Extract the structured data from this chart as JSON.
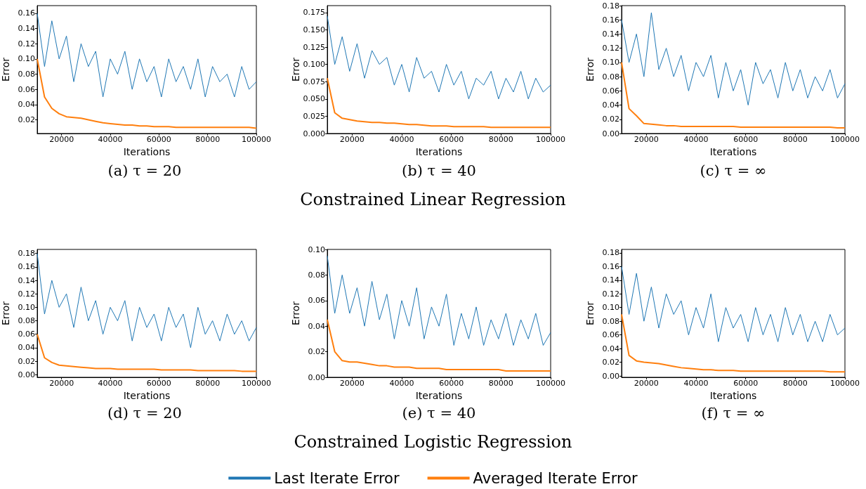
{
  "chart_data": [
    {
      "type": "line",
      "annotations": [
        "(a) τ = 20"
      ],
      "xlabel": "Iterations",
      "ylabel": "Error",
      "x": [
        10000,
        13000,
        16000,
        19000,
        22000,
        25000,
        28000,
        31000,
        34000,
        37000,
        40000,
        43000,
        46000,
        49000,
        52000,
        55000,
        58000,
        61000,
        64000,
        67000,
        70000,
        73000,
        76000,
        79000,
        82000,
        85000,
        88000,
        91000,
        94000,
        97000,
        100000
      ],
      "xlim": [
        10000,
        100000
      ],
      "xticks": [
        20000,
        40000,
        60000,
        80000,
        100000
      ],
      "ylim": [
        0.002,
        0.17
      ],
      "yticks": [
        0.02,
        0.04,
        0.06,
        0.08,
        {
          "value": 0.1,
          "label": "0.10"
        },
        0.12,
        0.14,
        0.16
      ],
      "grid": false,
      "legend": false,
      "marker": "none",
      "series": [
        {
          "color": "#1f77b4",
          "values": [
            0.16,
            0.09,
            0.15,
            0.1,
            0.13,
            0.07,
            0.12,
            0.09,
            0.11,
            0.05,
            0.1,
            0.08,
            0.11,
            0.06,
            0.1,
            0.07,
            0.09,
            0.05,
            0.1,
            0.07,
            0.09,
            0.06,
            0.1,
            0.05,
            0.09,
            0.07,
            0.08,
            0.05,
            0.09,
            0.06,
            0.07
          ]
        },
        {
          "color": "#ff7f0e",
          "values": [
            0.1,
            0.05,
            0.035,
            0.028,
            0.024,
            0.023,
            0.022,
            0.02,
            0.018,
            0.016,
            0.015,
            0.014,
            0.013,
            0.013,
            0.012,
            0.012,
            0.011,
            0.011,
            0.011,
            0.01,
            0.01,
            0.01,
            0.01,
            0.01,
            0.01,
            0.01,
            0.01,
            0.01,
            0.01,
            0.01,
            0.009
          ]
        }
      ]
    },
    {
      "type": "line",
      "title": "Constrained Linear Regression",
      "annotations": [
        "(b) τ = 40"
      ],
      "xlabel": "Iterations",
      "ylabel": "Error",
      "x": [
        10000,
        13000,
        16000,
        19000,
        22000,
        25000,
        28000,
        31000,
        34000,
        37000,
        40000,
        43000,
        46000,
        49000,
        52000,
        55000,
        58000,
        61000,
        64000,
        67000,
        70000,
        73000,
        76000,
        79000,
        82000,
        85000,
        88000,
        91000,
        94000,
        97000,
        100000
      ],
      "xlim": [
        10000,
        100000
      ],
      "xticks": [
        20000,
        40000,
        60000,
        80000,
        100000
      ],
      "ylim": [
        0,
        0.185
      ],
      "yticks": [
        {
          "value": 0,
          "label": "0.000"
        },
        {
          "value": 0.025,
          "label": "0.025"
        },
        {
          "value": 0.05,
          "label": "0.050"
        },
        {
          "value": 0.075,
          "label": "0.075"
        },
        {
          "value": 0.1,
          "label": "0.100"
        },
        {
          "value": 0.125,
          "label": "0.125"
        },
        {
          "value": 0.15,
          "label": "0.150"
        },
        {
          "value": 0.175,
          "label": "0.175"
        }
      ],
      "grid": false,
      "legend": false,
      "marker": "none",
      "series": [
        {
          "color": "#1f77b4",
          "values": [
            0.17,
            0.1,
            0.14,
            0.09,
            0.13,
            0.08,
            0.12,
            0.1,
            0.11,
            0.07,
            0.1,
            0.06,
            0.11,
            0.08,
            0.09,
            0.06,
            0.1,
            0.07,
            0.09,
            0.05,
            0.08,
            0.07,
            0.09,
            0.05,
            0.08,
            0.06,
            0.09,
            0.05,
            0.08,
            0.06,
            0.07
          ]
        },
        {
          "color": "#ff7f0e",
          "values": [
            0.08,
            0.03,
            0.022,
            0.02,
            0.018,
            0.017,
            0.016,
            0.016,
            0.015,
            0.015,
            0.014,
            0.013,
            0.013,
            0.012,
            0.011,
            0.011,
            0.011,
            0.01,
            0.01,
            0.01,
            0.01,
            0.01,
            0.009,
            0.009,
            0.009,
            0.009,
            0.009,
            0.009,
            0.009,
            0.009,
            0.009
          ]
        }
      ]
    },
    {
      "type": "line",
      "annotations": [
        "(c) τ = ∞"
      ],
      "xlabel": "Iterations",
      "ylabel": "Error",
      "x": [
        10000,
        13000,
        16000,
        19000,
        22000,
        25000,
        28000,
        31000,
        34000,
        37000,
        40000,
        43000,
        46000,
        49000,
        52000,
        55000,
        58000,
        61000,
        64000,
        67000,
        70000,
        73000,
        76000,
        79000,
        82000,
        85000,
        88000,
        91000,
        94000,
        97000,
        100000
      ],
      "xlim": [
        10000,
        100000
      ],
      "xticks": [
        20000,
        40000,
        60000,
        80000,
        100000
      ],
      "ylim": [
        0,
        0.18
      ],
      "yticks": [
        {
          "value": 0,
          "label": "0.00"
        },
        0.02,
        0.04,
        0.06,
        0.08,
        {
          "value": 0.1,
          "label": "0.10"
        },
        0.12,
        0.14,
        0.16,
        0.18
      ],
      "grid": false,
      "legend": false,
      "marker": "none",
      "series": [
        {
          "color": "#1f77b4",
          "values": [
            0.16,
            0.1,
            0.14,
            0.08,
            0.17,
            0.09,
            0.12,
            0.08,
            0.11,
            0.06,
            0.1,
            0.08,
            0.11,
            0.05,
            0.1,
            0.06,
            0.09,
            0.04,
            0.1,
            0.07,
            0.09,
            0.05,
            0.1,
            0.06,
            0.09,
            0.05,
            0.08,
            0.06,
            0.09,
            0.05,
            0.07
          ]
        },
        {
          "color": "#ff7f0e",
          "values": [
            0.1,
            0.035,
            0.025,
            0.014,
            0.013,
            0.012,
            0.011,
            0.011,
            0.01,
            0.01,
            0.01,
            0.01,
            0.01,
            0.01,
            0.01,
            0.01,
            0.009,
            0.009,
            0.009,
            0.009,
            0.009,
            0.009,
            0.009,
            0.009,
            0.009,
            0.009,
            0.009,
            0.009,
            0.009,
            0.008,
            0.008
          ]
        }
      ]
    },
    {
      "type": "line",
      "annotations": [
        "(d) τ = 20"
      ],
      "xlabel": "Iterations",
      "ylabel": "Error",
      "x": [
        10000,
        13000,
        16000,
        19000,
        22000,
        25000,
        28000,
        31000,
        34000,
        37000,
        40000,
        43000,
        46000,
        49000,
        52000,
        55000,
        58000,
        61000,
        64000,
        67000,
        70000,
        73000,
        76000,
        79000,
        82000,
        85000,
        88000,
        91000,
        94000,
        97000,
        100000
      ],
      "xlim": [
        10000,
        100000
      ],
      "xticks": [
        20000,
        40000,
        60000,
        80000,
        100000
      ],
      "ylim": [
        -0.004,
        0.186
      ],
      "yticks": [
        {
          "value": 0,
          "label": "0.00"
        },
        0.02,
        0.04,
        0.06,
        0.08,
        {
          "value": 0.1,
          "label": "0.10"
        },
        0.12,
        0.14,
        0.16,
        0.18
      ],
      "grid": false,
      "legend": false,
      "marker": "none",
      "series": [
        {
          "color": "#1f77b4",
          "values": [
            0.18,
            0.09,
            0.14,
            0.1,
            0.12,
            0.07,
            0.13,
            0.08,
            0.11,
            0.06,
            0.1,
            0.08,
            0.11,
            0.05,
            0.1,
            0.07,
            0.09,
            0.05,
            0.1,
            0.07,
            0.09,
            0.04,
            0.1,
            0.06,
            0.08,
            0.05,
            0.09,
            0.06,
            0.08,
            0.05,
            0.07
          ]
        },
        {
          "color": "#ff7f0e",
          "values": [
            0.06,
            0.025,
            0.018,
            0.014,
            0.013,
            0.012,
            0.011,
            0.01,
            0.009,
            0.009,
            0.009,
            0.008,
            0.008,
            0.008,
            0.008,
            0.008,
            0.008,
            0.007,
            0.007,
            0.007,
            0.007,
            0.007,
            0.006,
            0.006,
            0.006,
            0.006,
            0.006,
            0.006,
            0.005,
            0.005,
            0.005
          ]
        }
      ]
    },
    {
      "type": "line",
      "title": "Constrained Logistic Regression",
      "annotations": [
        "(e) τ = 40"
      ],
      "xlabel": "Iterations",
      "ylabel": "Error",
      "x": [
        10000,
        13000,
        16000,
        19000,
        22000,
        25000,
        28000,
        31000,
        34000,
        37000,
        40000,
        43000,
        46000,
        49000,
        52000,
        55000,
        58000,
        61000,
        64000,
        67000,
        70000,
        73000,
        76000,
        79000,
        82000,
        85000,
        88000,
        91000,
        94000,
        97000,
        100000
      ],
      "xlim": [
        10000,
        100000
      ],
      "xticks": [
        20000,
        40000,
        60000,
        80000,
        100000
      ],
      "ylim": [
        0,
        0.1
      ],
      "yticks": [
        {
          "value": 0,
          "label": "0.00"
        },
        0.02,
        0.04,
        0.06,
        0.08,
        {
          "value": 0.1,
          "label": "0.10"
        }
      ],
      "grid": false,
      "legend": "bottom",
      "marker": "none",
      "series": [
        {
          "name": "Last Iterate Error",
          "color": "#1f77b4",
          "values": [
            0.095,
            0.05,
            0.08,
            0.05,
            0.07,
            0.04,
            0.075,
            0.045,
            0.065,
            0.03,
            0.06,
            0.04,
            0.07,
            0.03,
            0.055,
            0.04,
            0.065,
            0.025,
            0.05,
            0.03,
            0.055,
            0.025,
            0.045,
            0.03,
            0.05,
            0.025,
            0.045,
            0.03,
            0.05,
            0.025,
            0.035
          ]
        },
        {
          "name": "Averaged Iterate Error",
          "color": "#ff7f0e",
          "values": [
            0.045,
            0.02,
            0.013,
            0.012,
            0.012,
            0.011,
            0.01,
            0.009,
            0.009,
            0.008,
            0.008,
            0.008,
            0.007,
            0.007,
            0.007,
            0.007,
            0.006,
            0.006,
            0.006,
            0.006,
            0.006,
            0.006,
            0.006,
            0.006,
            0.005,
            0.005,
            0.005,
            0.005,
            0.005,
            0.005,
            0.005
          ]
        }
      ]
    },
    {
      "type": "line",
      "annotations": [
        "(f) τ = ∞"
      ],
      "xlabel": "Iterations",
      "ylabel": "Error",
      "x": [
        10000,
        13000,
        16000,
        19000,
        22000,
        25000,
        28000,
        31000,
        34000,
        37000,
        40000,
        43000,
        46000,
        49000,
        52000,
        55000,
        58000,
        61000,
        64000,
        67000,
        70000,
        73000,
        76000,
        79000,
        82000,
        85000,
        88000,
        91000,
        94000,
        97000,
        100000
      ],
      "xlim": [
        10000,
        100000
      ],
      "xticks": [
        20000,
        40000,
        60000,
        80000,
        100000
      ],
      "ylim": [
        -0.002,
        0.185
      ],
      "yticks": [
        {
          "value": 0,
          "label": "0.00"
        },
        0.02,
        0.04,
        0.06,
        0.08,
        {
          "value": 0.1,
          "label": "0.10"
        },
        0.12,
        0.14,
        0.16,
        0.18
      ],
      "grid": false,
      "legend": false,
      "marker": "none",
      "series": [
        {
          "color": "#1f77b4",
          "values": [
            0.16,
            0.09,
            0.15,
            0.08,
            0.13,
            0.07,
            0.12,
            0.09,
            0.11,
            0.06,
            0.1,
            0.07,
            0.12,
            0.05,
            0.1,
            0.07,
            0.09,
            0.05,
            0.1,
            0.06,
            0.09,
            0.05,
            0.1,
            0.06,
            0.09,
            0.05,
            0.08,
            0.05,
            0.09,
            0.06,
            0.07
          ]
        },
        {
          "color": "#ff7f0e",
          "values": [
            0.09,
            0.03,
            0.022,
            0.02,
            0.019,
            0.018,
            0.016,
            0.014,
            0.012,
            0.011,
            0.01,
            0.009,
            0.009,
            0.008,
            0.008,
            0.008,
            0.007,
            0.007,
            0.007,
            0.007,
            0.007,
            0.007,
            0.007,
            0.007,
            0.007,
            0.007,
            0.007,
            0.007,
            0.006,
            0.006,
            0.006
          ]
        }
      ]
    }
  ]
}
